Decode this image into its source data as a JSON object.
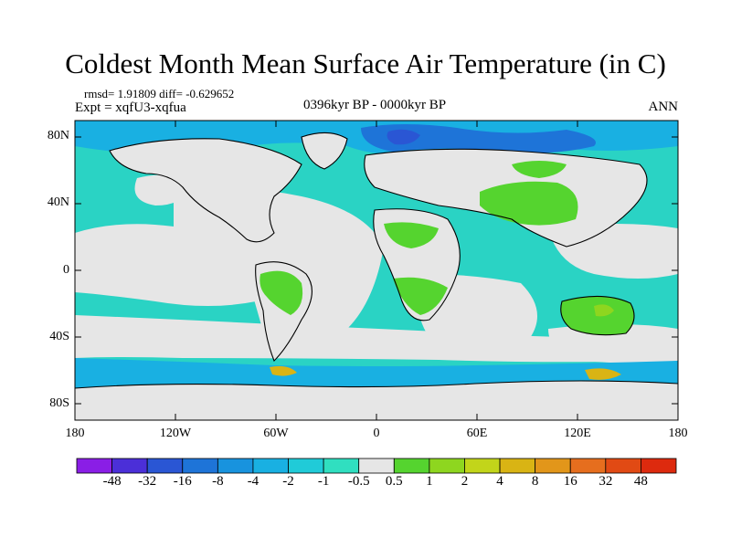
{
  "title": "Coldest Month Mean Surface Air Temperature (in C)",
  "stats_text": "rmsd= 1.91809 diff= -0.629652",
  "experiment": "Expt = xqfU3-xqfua",
  "period": "0396kyr BP - 0000kyr BP",
  "season": "ANN",
  "lat_labels": [
    "80N",
    "40N",
    "0",
    "40S",
    "80S"
  ],
  "lon_labels": [
    "180",
    "120W",
    "60W",
    "0",
    "60E",
    "120E",
    "180"
  ],
  "colorbar": {
    "labels": [
      "-48",
      "-32",
      "-16",
      "-8",
      "-4",
      "-2",
      "-1",
      "-0.5",
      "0.5",
      "1",
      "2",
      "4",
      "8",
      "16",
      "32",
      "48"
    ],
    "colors": [
      "#8a1ee6",
      "#4b2fd8",
      "#2a56d4",
      "#1e74d8",
      "#1893de",
      "#19b0e2",
      "#20cbd8",
      "#30dfc0",
      "#e6e6e6",
      "#55d42f",
      "#8ed61f",
      "#c2d51a",
      "#d9b414",
      "#e2961a",
      "#e66e1e",
      "#e14a14",
      "#dd2a0e"
    ]
  },
  "map_colors": {
    "ocean_background": "#2ad3c4",
    "near_zero": "#e6e6e6",
    "cooling_light": "#19b0e2",
    "cooling_mid": "#1e74d8",
    "cooling_strong": "#2a56d4",
    "warming_light": "#55d42f",
    "warming_mid": "#8ed61f",
    "warming_strong": "#d9b414",
    "coast": "#000000"
  }
}
